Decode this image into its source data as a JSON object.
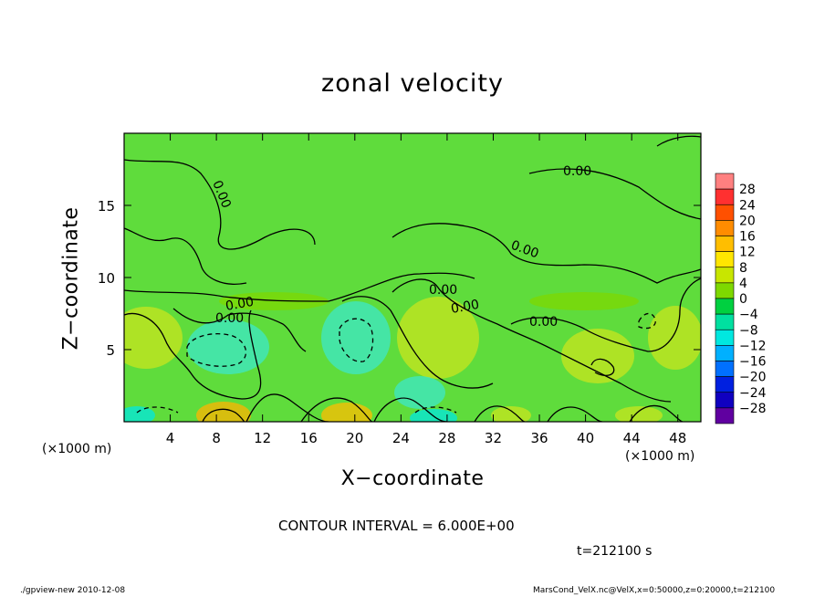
{
  "chart_data": {
    "type": "heatmap",
    "title": "zonal velocity",
    "xlabel": "X−coordinate",
    "ylabel": "Z−coordinate",
    "x_unit": "(×1000 m)",
    "x_ticks": [
      4,
      8,
      12,
      16,
      20,
      24,
      28,
      32,
      36,
      40,
      44,
      48
    ],
    "y_ticks": [
      5,
      10,
      15
    ],
    "xlim": [
      0,
      50
    ],
    "ylim": [
      0,
      20
    ],
    "contour_interval": "CONTOUR INTERVAL = 6.000E+00",
    "contour_labels": [
      "0.00",
      "0.00",
      "0.00",
      "0.00",
      "0.00",
      "0.00",
      "0.00",
      "0.00"
    ],
    "colorbar": {
      "levels": [
        "28",
        "24",
        "20",
        "16",
        "12",
        "8",
        "4",
        "0",
        "−4",
        "−8",
        "−12",
        "−16",
        "−20",
        "−24",
        "−28"
      ],
      "colors": [
        "#ff8080",
        "#ff3030",
        "#ff5000",
        "#ff8c00",
        "#ffbe00",
        "#ffe600",
        "#c8e600",
        "#7ed800",
        "#00d040",
        "#00e0a0",
        "#00e8e0",
        "#00b0ff",
        "#0070ff",
        "#0020e0",
        "#1000c0",
        "#6000a0"
      ]
    },
    "colors": {
      "background_field": "#5fdc3c",
      "positive_field": "#c8e61e",
      "negative_field": "#3ce8c8"
    }
  },
  "time_label": "t=212100 s",
  "footer": {
    "left": "./gpview-new  2010-12-08",
    "right": "MarsCond_VelX.nc@VelX,x=0:50000,z=0:20000,t=212100"
  }
}
